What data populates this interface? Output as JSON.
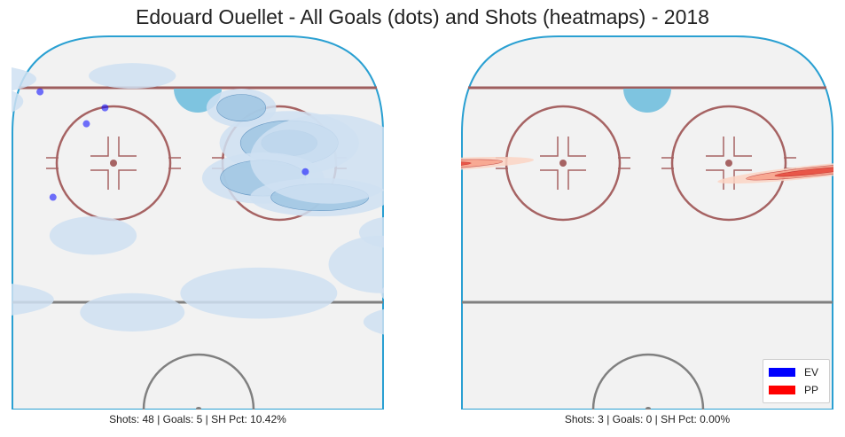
{
  "chart_data": [
    {
      "type": "heatmap",
      "title": "Edouard Ouellet - All Goals (dots) and Shots (heatmaps) - 2018",
      "panel": "left",
      "caption": "Shots: 48 | Goals: 5 | SH Pct: 10.42%",
      "stats": {
        "shots": 48,
        "goals": 5,
        "sh_pct": 10.42
      },
      "series": [
        {
          "name": "EV",
          "color": "#0000ff",
          "cmap": "Blues",
          "goals": [
            [
              -85,
              47
            ],
            [
              -78,
              14
            ],
            [
              -60,
              37
            ],
            [
              -50,
              42
            ],
            [
              58,
              22
            ]
          ],
          "shot_density": [
            {
              "x": 21,
              "y": 31,
              "rx": 16,
              "ry": 10,
              "level": 3
            },
            {
              "x": 15,
              "y": 20,
              "rx": 14,
              "ry": 8,
              "level": 2
            },
            {
              "x": 28,
              "y": 14,
              "rx": 16,
              "ry": 6,
              "level": 2
            },
            {
              "x": 30,
              "y": 26,
              "rx": 18,
              "ry": 14,
              "level": 1
            },
            {
              "x": 10,
              "y": 42,
              "rx": 8,
              "ry": 6,
              "level": 2
            },
            {
              "x": 50,
              "y": 15,
              "rx": 7,
              "ry": 5,
              "level": 2
            },
            {
              "x": -60,
              "y": 37,
              "rx": 14,
              "ry": 8,
              "level": 2
            },
            {
              "x": -68,
              "y": 31,
              "rx": 18,
              "ry": 13,
              "level": 1
            },
            {
              "x": -50,
              "y": 44,
              "rx": 10,
              "ry": 5,
              "level": 2
            },
            {
              "x": -85,
              "y": 25,
              "rx": 14,
              "ry": 14,
              "level": 1
            },
            {
              "x": -95,
              "y": 13,
              "rx": 10,
              "ry": 6,
              "level": 1
            },
            {
              "x": -55,
              "y": 51,
              "rx": 18,
              "ry": 5,
              "level": 1
            },
            {
              "x": -70,
              "y": -2,
              "rx": 18,
              "ry": 6,
              "level": 1
            },
            {
              "x": -24,
              "y": 2,
              "rx": 10,
              "ry": 6,
              "level": 1
            },
            {
              "x": -55,
              "y": -18,
              "rx": 22,
              "ry": 6,
              "level": 1
            },
            {
              "x": -15,
              "y": -22,
              "rx": 12,
              "ry": 6,
              "level": 1
            },
            {
              "x": 14,
              "y": -16,
              "rx": 18,
              "ry": 8,
              "level": 1
            },
            {
              "x": 42,
              "y": -7,
              "rx": 12,
              "ry": 9,
              "level": 1
            },
            {
              "x": 48,
              "y": -16,
              "rx": 6,
              "ry": 4,
              "level": 2
            },
            {
              "x": 50,
              "y": -25,
              "rx": 12,
              "ry": 5,
              "level": 1
            },
            {
              "x": 45,
              "y": 3,
              "rx": 8,
              "ry": 5,
              "level": 1
            },
            {
              "x": 52,
              "y": 35,
              "rx": 8,
              "ry": 15,
              "level": 1
            },
            {
              "x": -15,
              "y": 52,
              "rx": 10,
              "ry": 4,
              "level": 1
            }
          ]
        }
      ]
    },
    {
      "type": "heatmap",
      "panel": "right",
      "caption": "Shots: 3 | Goals: 0 | SH Pct: 0.00%",
      "stats": {
        "shots": 3,
        "goals": 0,
        "sh_pct": 0.0
      },
      "series": [
        {
          "name": "PP",
          "color": "#ff0000",
          "cmap": "Reds",
          "goals": [],
          "shot_density": [
            {
              "x": -50,
              "y": 24,
              "rx": 24,
              "ry": 2,
              "angle": -3,
              "level": 3
            },
            {
              "x": -84,
              "y": 15,
              "rx": 14,
              "ry": 2,
              "angle": -3,
              "level": 3
            },
            {
              "x": 38,
              "y": 22,
              "rx": 22,
              "ry": 2,
              "angle": -6,
              "level": 3
            }
          ]
        }
      ]
    }
  ],
  "legend": {
    "placement": "bottom-right",
    "items": [
      {
        "label": "EV",
        "color": "#0000ff"
      },
      {
        "label": "PP",
        "color": "#ff0000"
      }
    ]
  }
}
